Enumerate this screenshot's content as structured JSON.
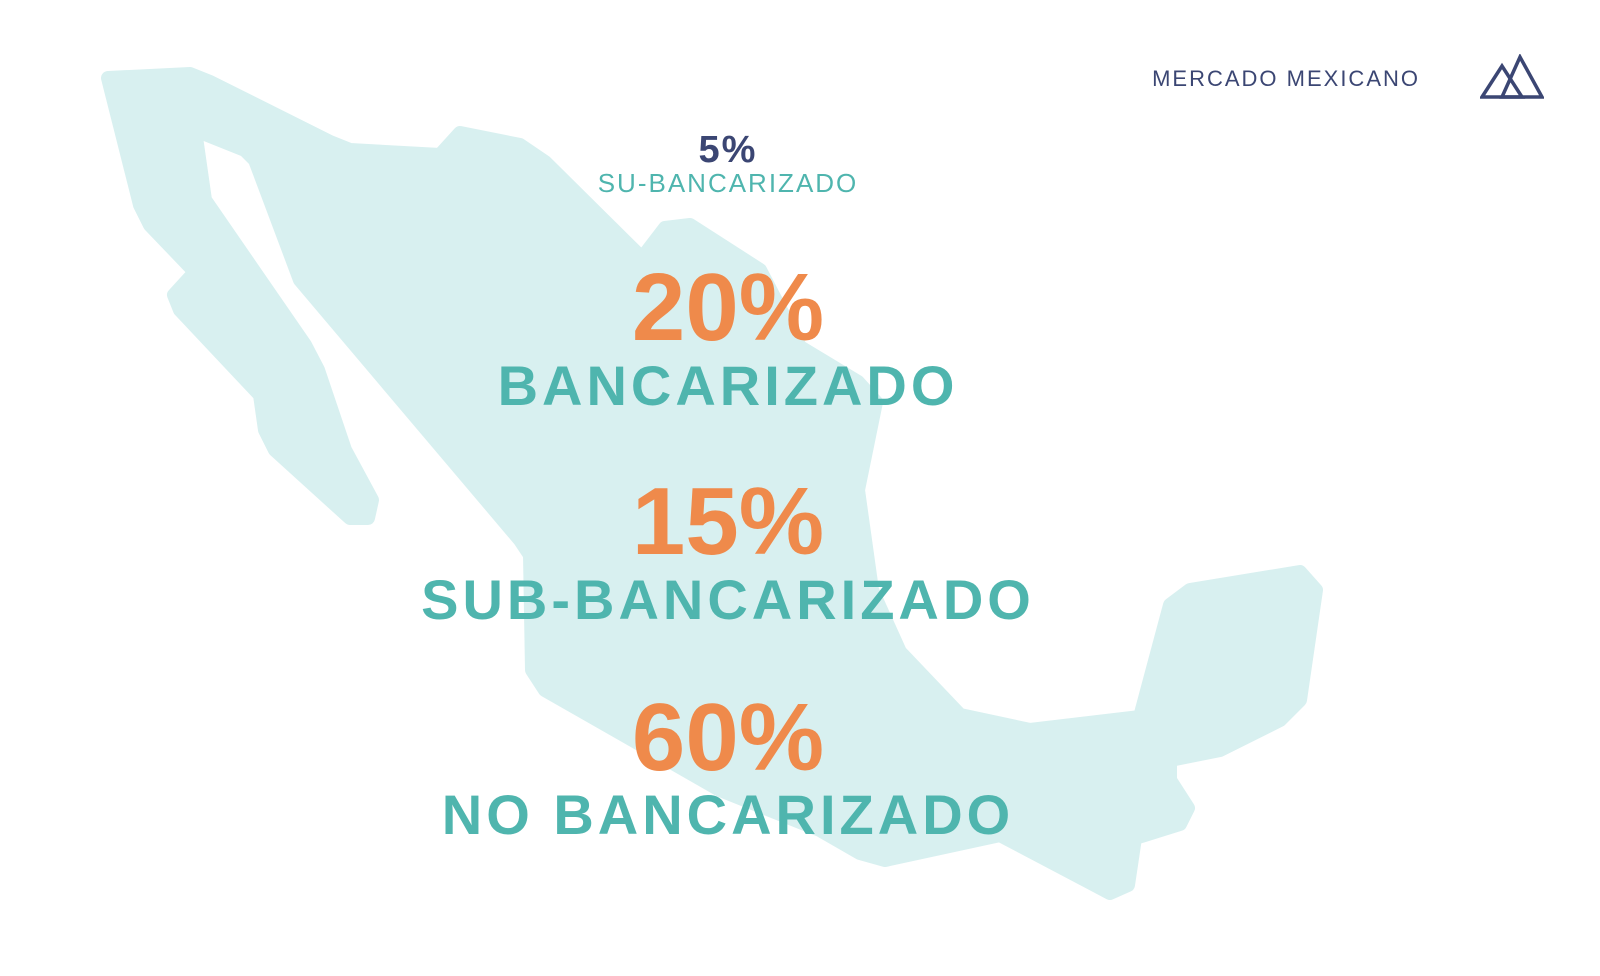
{
  "header": {
    "brand": "MERCADO MEXICANO",
    "logo_icon": "mountains-icon"
  },
  "colors": {
    "map": "#d8f0f0",
    "accent_orange": "#ef8a4b",
    "teal": "#4fb5ae",
    "navy": "#3b4673"
  },
  "stats": [
    {
      "value": "5%",
      "label": "SU-BANCARIZADO"
    },
    {
      "value": "20%",
      "label": "BANCARIZADO"
    },
    {
      "value": "15%",
      "label": "SUB-BANCARIZADO"
    },
    {
      "value": "60%",
      "label": "NO BANCARIZADO"
    }
  ]
}
